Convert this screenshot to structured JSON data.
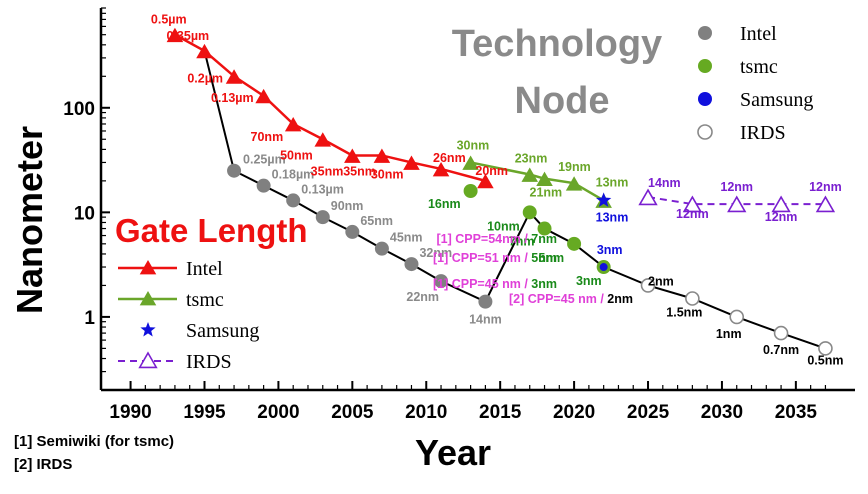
{
  "chart_data": {
    "type": "line",
    "xlabel": "Year",
    "ylabel": "Nanometer",
    "yscale": "log",
    "xlim": [
      1988,
      2039
    ],
    "ylim": [
      0.2,
      900
    ],
    "x_ticks": [
      "1990",
      "1995",
      "2000",
      "2005",
      "2010",
      "2015",
      "2020",
      "2025",
      "2030",
      "2035"
    ],
    "y_ticks": [
      "1",
      "10",
      "100"
    ],
    "annotations": {
      "tech_title": [
        "Technology",
        "Node"
      ],
      "gate_title": "Gate Length",
      "cpp": [
        {
          "text": "[1] CPP=54nm / ",
          "suffix": "7nm"
        },
        {
          "text": "[1] CPP=51 nm / ",
          "suffix": "5nm"
        },
        {
          "text": "[1] CPP=45 nm / ",
          "suffix": "3nm"
        },
        {
          "text": "[2] CPP=45 nm / ",
          "suffix": "2nm"
        }
      ]
    },
    "footnotes": [
      "[1] Semiwiki (for tsmc)",
      "[2] IRDS"
    ],
    "node_legend": [
      "Intel",
      "tsmc",
      "Samsung",
      "IRDS"
    ],
    "gate_legend": [
      "Intel",
      "tsmc",
      "Samsung",
      "IRDS"
    ],
    "colors": {
      "intel_node": "#808080",
      "tsmc_node": "#66aa22",
      "samsung": "#1010dd",
      "irds": "#7a1fd0",
      "intel_gate": "#ee1111",
      "tsmc_gate": "#6aa62a",
      "connector": "#000000"
    },
    "series": [
      {
        "name": "Intel",
        "group": "node",
        "points": [
          [
            1997,
            25,
            "0.25µm"
          ],
          [
            1999,
            18,
            "0.18µm"
          ],
          [
            2001,
            13,
            "0.13µm"
          ],
          [
            2003,
            9,
            "90nm"
          ],
          [
            2005,
            6.5,
            "65nm"
          ],
          [
            2007,
            4.5,
            "45nm"
          ],
          [
            2009,
            3.2,
            "32nm"
          ],
          [
            2011,
            2.2,
            "22nm"
          ],
          [
            2014,
            1.4,
            "14nm"
          ]
        ]
      },
      {
        "name": "tsmc",
        "group": "node",
        "points": [
          [
            2013,
            16,
            "16nm"
          ],
          [
            2017,
            10,
            "10nm"
          ],
          [
            2018,
            7,
            "7nm"
          ],
          [
            2020,
            5,
            "5nm"
          ],
          [
            2022,
            3,
            "3nm"
          ]
        ]
      },
      {
        "name": "Samsung",
        "group": "node",
        "points": [
          [
            2022,
            3,
            "3nm"
          ]
        ]
      },
      {
        "name": "IRDS",
        "group": "node",
        "points": [
          [
            2025,
            2,
            "2nm"
          ],
          [
            2028,
            1.5,
            "1.5nm"
          ],
          [
            2031,
            1,
            "1nm"
          ],
          [
            2034,
            0.7,
            "0.7nm"
          ],
          [
            2037,
            0.5,
            "0.5nm"
          ]
        ]
      },
      {
        "name": "Intel",
        "group": "gate",
        "points": [
          [
            1993,
            500,
            "0.5µm"
          ],
          [
            1995,
            350,
            "0.35µm"
          ],
          [
            1997,
            200,
            "0.2µm"
          ],
          [
            1999,
            130,
            "0.13µm"
          ],
          [
            2001,
            70,
            "70nm"
          ],
          [
            2003,
            50,
            "50nm"
          ],
          [
            2005,
            35,
            "35nm"
          ],
          [
            2007,
            35,
            "35nm"
          ],
          [
            2009,
            30,
            "30nm"
          ],
          [
            2011,
            26,
            "26nm"
          ],
          [
            2014,
            20,
            "20nm"
          ]
        ]
      },
      {
        "name": "tsmc",
        "group": "gate",
        "points": [
          [
            2013,
            30,
            "30nm"
          ],
          [
            2017,
            23,
            "23nm"
          ],
          [
            2018,
            21,
            "21nm"
          ],
          [
            2020,
            19,
            "19nm"
          ],
          [
            2022,
            13,
            "13nm"
          ]
        ]
      },
      {
        "name": "Samsung",
        "group": "gate",
        "points": [
          [
            2022,
            13,
            "13nm"
          ]
        ]
      },
      {
        "name": "IRDS",
        "group": "gate",
        "points": [
          [
            2025,
            14,
            "14nm"
          ],
          [
            2028,
            12,
            "12nm"
          ],
          [
            2031,
            12,
            "12nm"
          ],
          [
            2034,
            12,
            "12nm"
          ],
          [
            2037,
            12,
            "12nm"
          ]
        ]
      }
    ]
  }
}
